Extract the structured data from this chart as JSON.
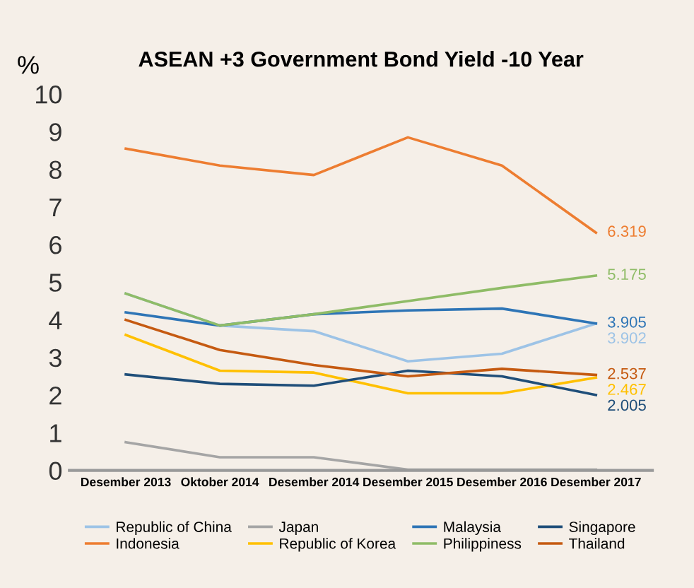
{
  "chart_data": {
    "type": "line",
    "title": "ASEAN +3 Government Bond Yield -10 Year",
    "ylabel": "%",
    "categories": [
      "Desember 2013",
      "Oktober 2014",
      "Desember 2014",
      "Desember 2015",
      "Desember 2016",
      "Desember 2017"
    ],
    "series": [
      {
        "name": "Republic of China",
        "color": "#9dc3e6",
        "values": [
          4.7,
          3.85,
          3.7,
          2.9,
          3.1,
          3.902
        ],
        "value_labels": [
          null,
          null,
          null,
          null,
          null,
          "3.902"
        ]
      },
      {
        "name": "Indonesia",
        "color": "#ed7d31",
        "values": [
          8.55,
          8.1,
          7.85,
          8.85,
          8.1,
          6.319
        ],
        "value_labels": [
          null,
          null,
          null,
          null,
          null,
          "6.319"
        ]
      },
      {
        "name": "Japan",
        "color": "#a5a5a5",
        "values": [
          0.75,
          0.35,
          0.35,
          0.02,
          0.02,
          0.02
        ]
      },
      {
        "name": "Republic of Korea",
        "color": "#ffc000",
        "values": [
          3.6,
          2.65,
          2.6,
          2.05,
          2.05,
          2.467
        ],
        "value_labels": [
          null,
          null,
          null,
          null,
          null,
          "2.467"
        ]
      },
      {
        "name": "Malaysia",
        "color": "#2e75b6",
        "values": [
          4.2,
          3.85,
          4.15,
          4.25,
          4.3,
          3.905
        ],
        "value_labels": [
          null,
          null,
          null,
          null,
          null,
          "3.905"
        ]
      },
      {
        "name": "Philippiness",
        "color": "#8fbc67",
        "values": [
          4.7,
          3.85,
          4.15,
          4.5,
          4.85,
          5.175
        ],
        "value_labels": [
          null,
          null,
          null,
          null,
          null,
          "5.175"
        ]
      },
      {
        "name": "Singapore",
        "color": "#1f4e79",
        "values": [
          2.55,
          2.3,
          2.25,
          2.65,
          2.5,
          2.005
        ],
        "value_labels": [
          null,
          null,
          null,
          null,
          null,
          "2.005"
        ]
      },
      {
        "name": "Thailand",
        "color": "#c55a11",
        "values": [
          4.0,
          3.2,
          2.8,
          2.5,
          2.7,
          2.537
        ],
        "value_labels": [
          null,
          null,
          null,
          null,
          null,
          "2.537"
        ]
      }
    ],
    "ylim": [
      0,
      10
    ],
    "yticks": [
      0,
      1,
      2,
      3,
      4,
      5,
      6,
      7,
      8,
      9,
      10
    ],
    "grid": false,
    "legend": "bottom",
    "marker": "none",
    "line_style": "solid"
  }
}
